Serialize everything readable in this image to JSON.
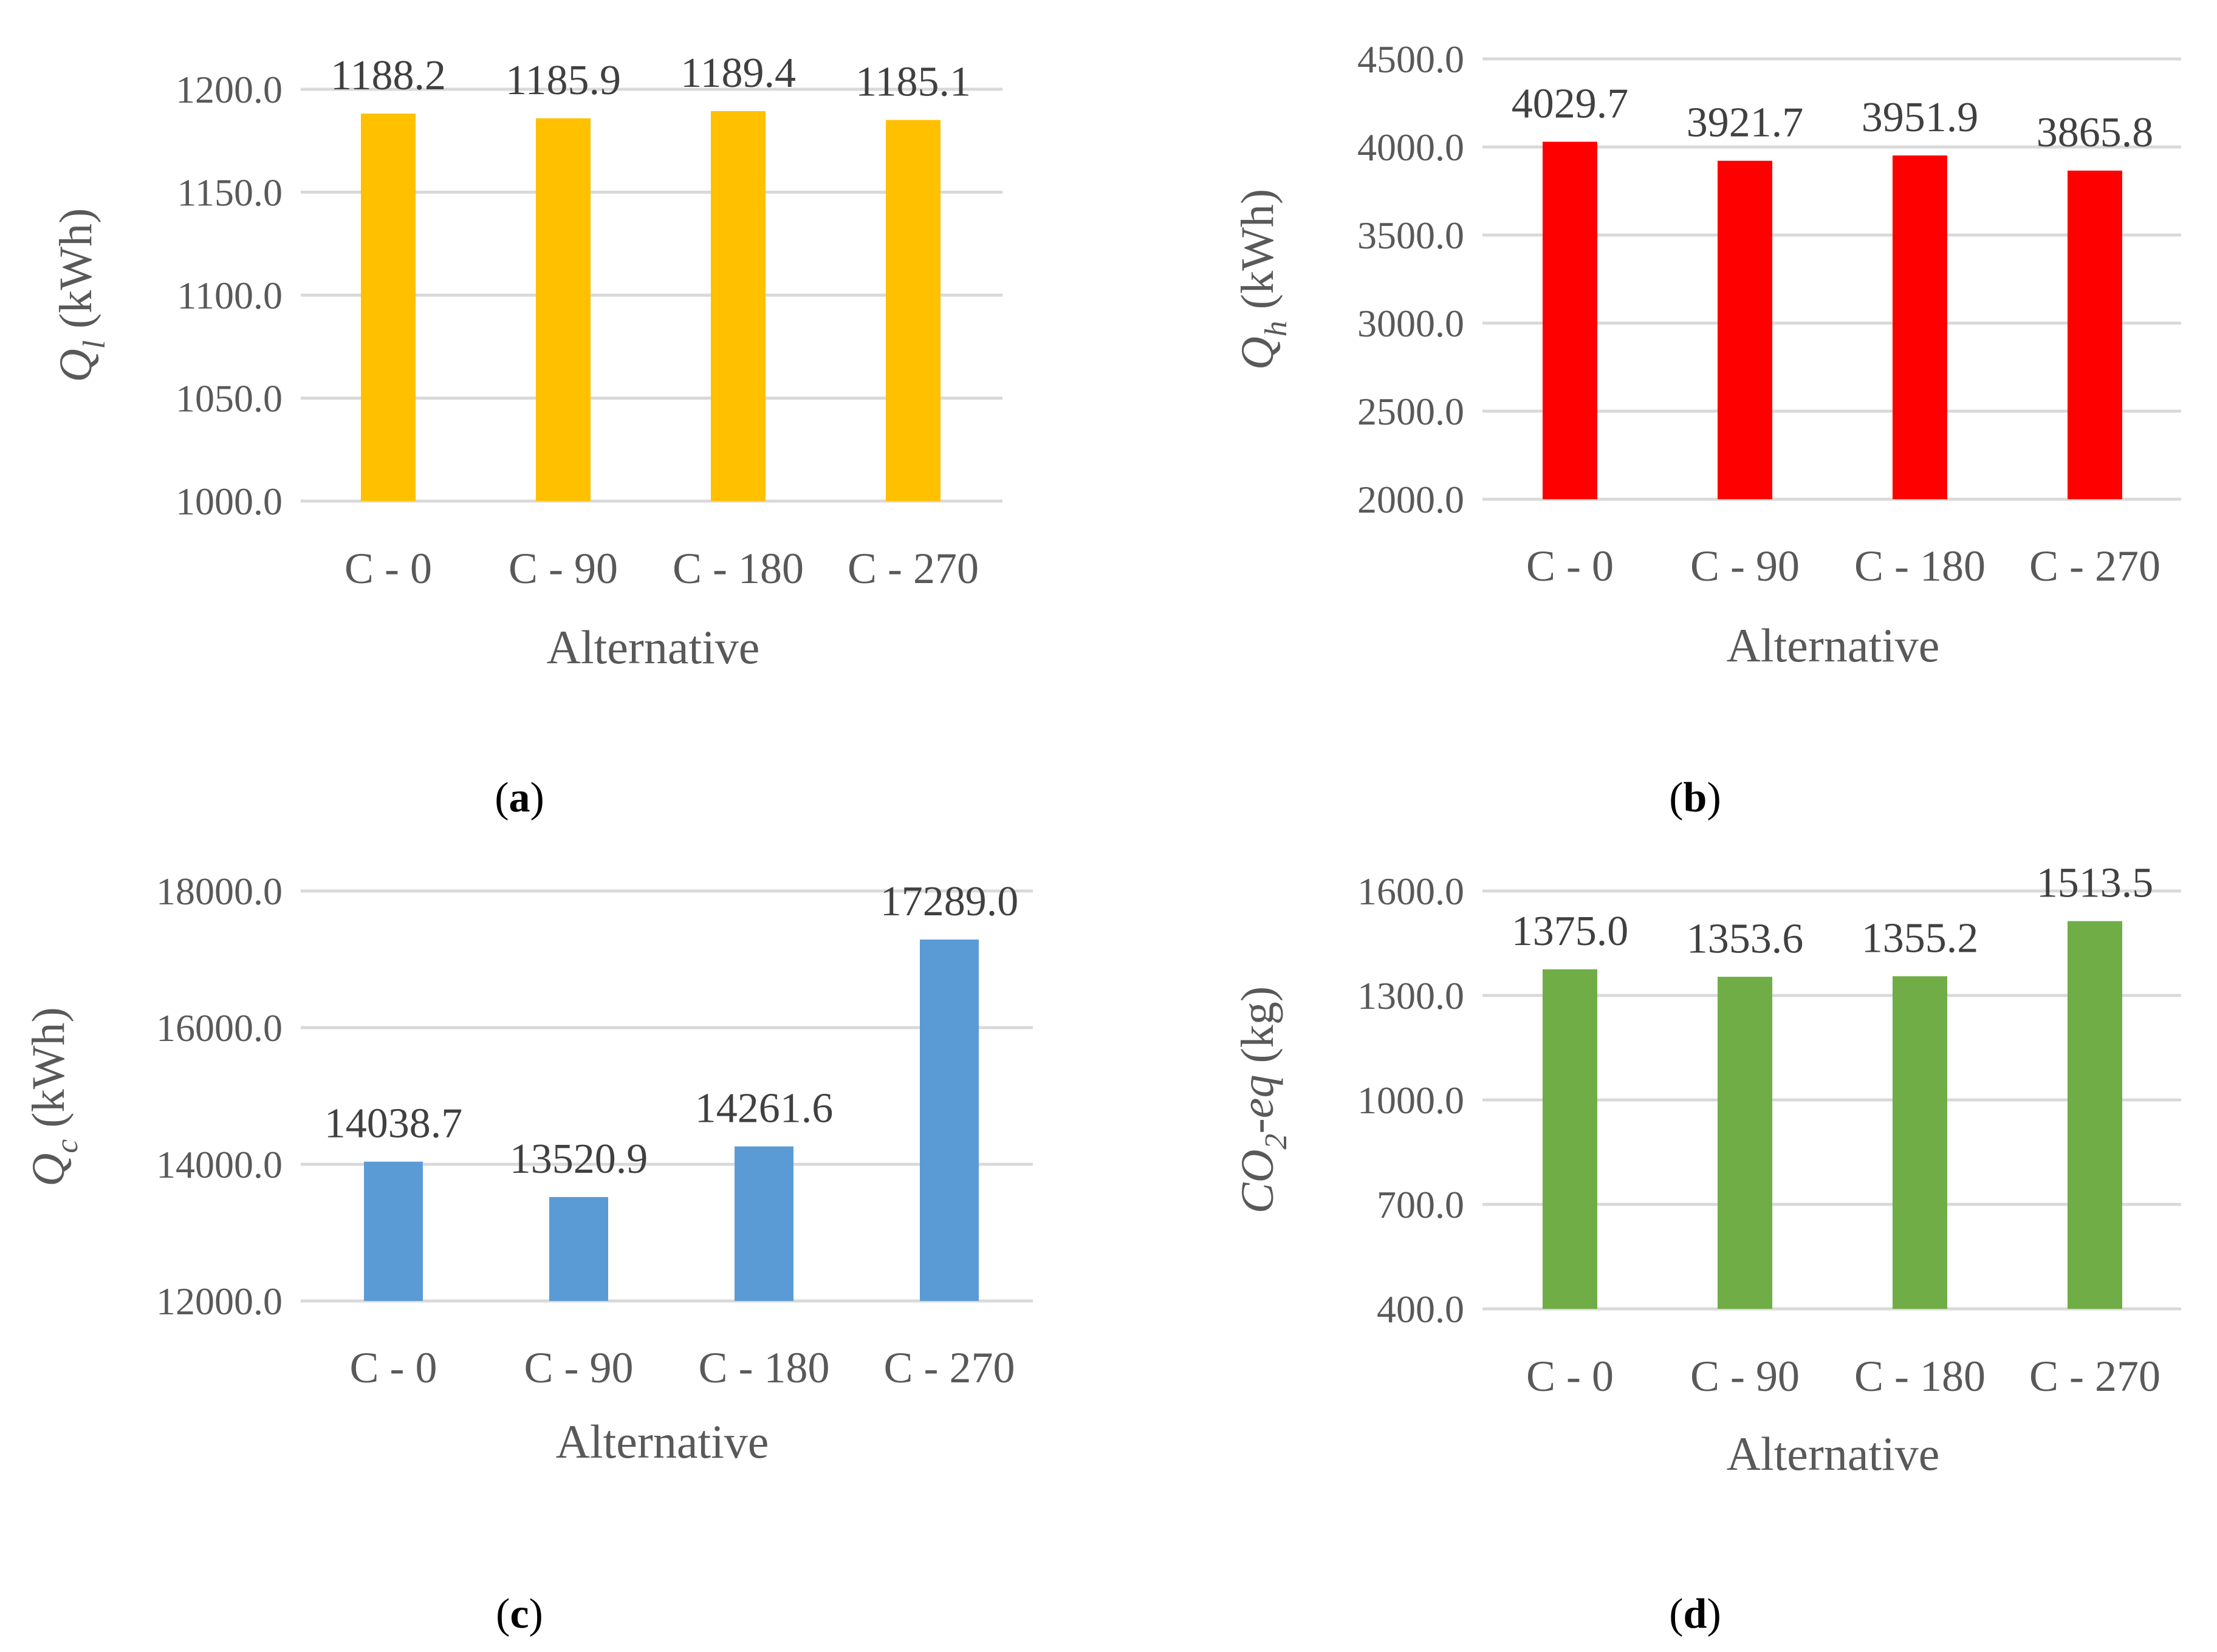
{
  "chart_data": [
    {
      "type": "bar",
      "panel_label": "a",
      "categories": [
        "C - 0",
        "C - 90",
        "C - 180",
        "C - 270"
      ],
      "values": [
        1188.2,
        1185.9,
        1189.4,
        1185.1
      ],
      "value_labels": [
        "1188.2",
        "1185.9",
        "1189.4",
        "1185.1"
      ],
      "ylim": [
        1000,
        1200
      ],
      "yticks": [
        1000,
        1050,
        1100,
        1150,
        1200
      ],
      "ytick_labels": [
        "1000.0",
        "1050.0",
        "1100.0",
        "1150.0",
        "1200.0"
      ],
      "xlabel": "Alternative",
      "ylabel": {
        "symbol": "Q",
        "sub": "l",
        "unit": " (kWh)"
      },
      "color": "#FFC000",
      "grid": true
    },
    {
      "type": "bar",
      "panel_label": "b",
      "categories": [
        "C - 0",
        "C - 90",
        "C - 180",
        "C - 270"
      ],
      "values": [
        4029.7,
        3921.7,
        3951.9,
        3865.8
      ],
      "value_labels": [
        "4029.7",
        "3921.7",
        "3951.9",
        "3865.8"
      ],
      "ylim": [
        2000,
        4500
      ],
      "yticks": [
        2000,
        2500,
        3000,
        3500,
        4000,
        4500
      ],
      "ytick_labels": [
        "2000.0",
        "2500.0",
        "3000.0",
        "3500.0",
        "4000.0",
        "4500.0"
      ],
      "xlabel": "Alternative",
      "ylabel": {
        "symbol": "Q",
        "sub": "h",
        "unit": " (kWh)"
      },
      "color": "#FF0000",
      "grid": true
    },
    {
      "type": "bar",
      "panel_label": "c",
      "categories": [
        "C - 0",
        "C - 90",
        "C - 180",
        "C - 270"
      ],
      "values": [
        14038.7,
        13520.9,
        14261.6,
        17289.0
      ],
      "value_labels": [
        "14038.7",
        "13520.9",
        "14261.6",
        "17289.0"
      ],
      "ylim": [
        12000,
        18000
      ],
      "yticks": [
        12000,
        14000,
        16000,
        18000
      ],
      "ytick_labels": [
        "12000.0",
        "14000.0",
        "16000.0",
        "18000.0"
      ],
      "xlabel": "Alternative",
      "ylabel": {
        "symbol": "Q",
        "sub": "c",
        "unit": " (kWh)"
      },
      "color": "#5B9BD5",
      "grid": true
    },
    {
      "type": "bar",
      "panel_label": "d",
      "categories": [
        "C - 0",
        "C - 90",
        "C - 180",
        "C - 270"
      ],
      "values": [
        1375.0,
        1353.6,
        1355.2,
        1513.5
      ],
      "value_labels": [
        "1375.0",
        "1353.6",
        "1355.2",
        "1513.5"
      ],
      "ylim": [
        400,
        1600
      ],
      "yticks": [
        400,
        700,
        1000,
        1300,
        1600
      ],
      "ytick_labels": [
        "400.0",
        "700.0",
        "1000.0",
        "1300.0",
        "1600.0"
      ],
      "xlabel": "Alternative",
      "ylabel": {
        "symbol": "CO",
        "sub": "2",
        "suffix": "-eq",
        "unit": " (kg)"
      },
      "color": "#70AD47",
      "grid": true
    }
  ]
}
